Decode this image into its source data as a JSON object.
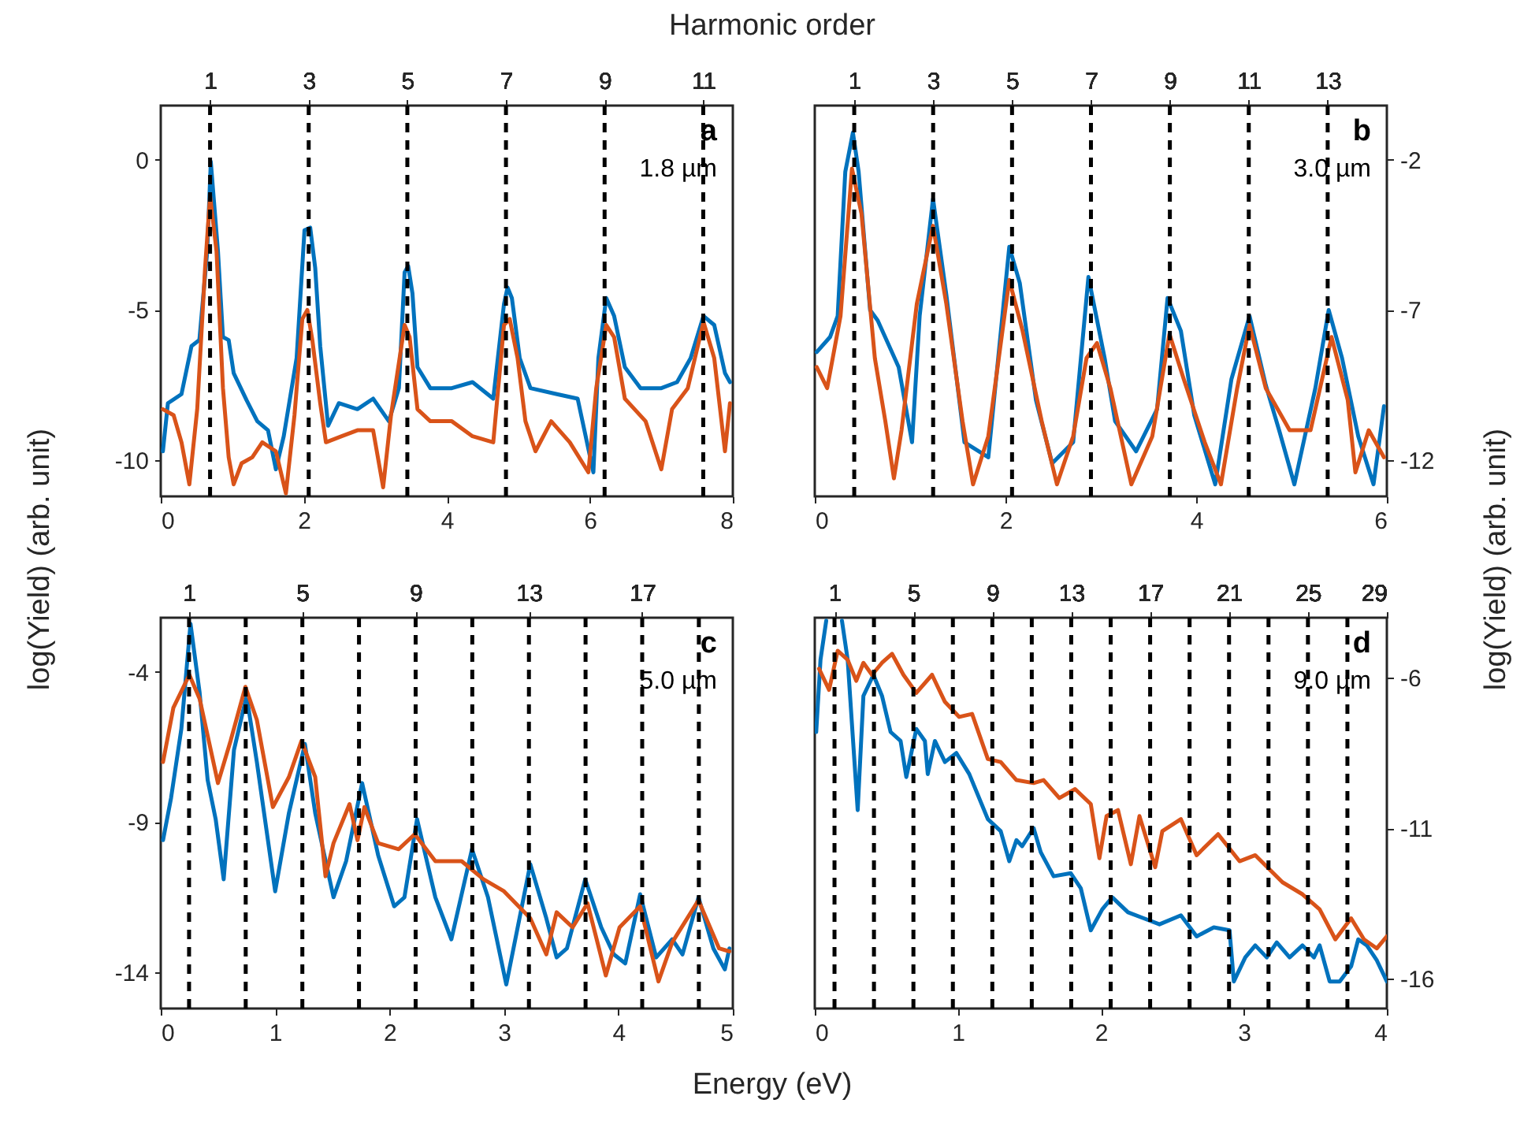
{
  "chart_data": [
    {
      "type": "line",
      "x2label": "Harmonic order",
      "ylabel": "log(Yield) (arb. unit)",
      "annotations": [
        "a",
        "1.8  µm"
      ],
      "xlim": [
        0,
        8
      ],
      "xticks": [
        0,
        2,
        4,
        6,
        8
      ],
      "ylim": [
        -11.2,
        1.8
      ],
      "yticks": [
        -10,
        -5,
        0
      ],
      "x2lim": [
        0,
        11.6
      ],
      "x2ticks": [
        1,
        3,
        5,
        7,
        9,
        11
      ],
      "ref_lines": [
        {
          "axis": "x2",
          "value": 1,
          "line_style": "dashed",
          "color": "#000000"
        },
        {
          "axis": "x2",
          "value": 3,
          "line_style": "dashed",
          "color": "#000000"
        },
        {
          "axis": "x2",
          "value": 5,
          "line_style": "dashed",
          "color": "#000000"
        },
        {
          "axis": "x2",
          "value": 7,
          "line_style": "dashed",
          "color": "#000000"
        },
        {
          "axis": "x2",
          "value": 9,
          "line_style": "dashed",
          "color": "#000000"
        },
        {
          "axis": "x2",
          "value": 11,
          "line_style": "dashed",
          "color": "#000000"
        }
      ],
      "series": [
        {
          "color": "#0072bd",
          "x": [
            0.03,
            0.1,
            0.29,
            0.43,
            0.54,
            0.65,
            0.7,
            0.8,
            0.87,
            0.95,
            1.02,
            1.2,
            1.35,
            1.5,
            1.61,
            1.72,
            1.9,
            2.01,
            2.09,
            2.16,
            2.23,
            2.34,
            2.49,
            2.75,
            2.97,
            3.19,
            3.33,
            3.41,
            3.46,
            3.52,
            3.59,
            3.77,
            4.07,
            4.36,
            4.65,
            4.8,
            4.85,
            4.91,
            5.02,
            5.17,
            5.54,
            5.83,
            6.05,
            6.12,
            6.23,
            6.34,
            6.49,
            6.71,
            7.0,
            7.22,
            7.41,
            7.59,
            7.74,
            7.89,
            7.96
          ],
          "values": [
            -9.7,
            -8.1,
            -7.8,
            -6.2,
            -6.0,
            -3.05,
            -0.07,
            -3.05,
            -5.9,
            -6.0,
            -7.1,
            -8.0,
            -8.7,
            -9.0,
            -10.3,
            -9.2,
            -6.6,
            -2.35,
            -2.26,
            -3.6,
            -6.2,
            -8.85,
            -8.1,
            -8.3,
            -7.95,
            -8.7,
            -7.6,
            -3.75,
            -3.54,
            -4.45,
            -6.9,
            -7.6,
            -7.6,
            -7.4,
            -7.95,
            -4.8,
            -4.25,
            -4.6,
            -6.6,
            -7.6,
            -7.8,
            -7.95,
            -10.4,
            -6.6,
            -4.6,
            -5.2,
            -6.9,
            -7.6,
            -7.6,
            -7.4,
            -6.6,
            -5.2,
            -5.5,
            -7.1,
            -7.4
          ]
        },
        {
          "color": "#d95319",
          "x": [
            0.03,
            0.18,
            0.29,
            0.4,
            0.51,
            0.62,
            0.69,
            0.78,
            0.87,
            0.95,
            1.02,
            1.13,
            1.28,
            1.42,
            1.61,
            1.75,
            1.87,
            1.98,
            2.05,
            2.12,
            2.23,
            2.31,
            2.53,
            2.75,
            2.97,
            3.11,
            3.22,
            3.41,
            3.48,
            3.59,
            3.77,
            4.07,
            4.36,
            4.65,
            4.8,
            4.88,
            4.99,
            5.1,
            5.24,
            5.46,
            5.72,
            5.98,
            6.09,
            6.23,
            6.34,
            6.49,
            6.78,
            7.0,
            7.15,
            7.37,
            7.59,
            7.74,
            7.89,
            7.96
          ],
          "values": [
            -8.3,
            -8.5,
            -9.4,
            -10.8,
            -8.3,
            -3.6,
            -1.2,
            -3.05,
            -7.6,
            -9.9,
            -10.8,
            -10.1,
            -9.9,
            -9.4,
            -9.7,
            -11.1,
            -8.5,
            -5.3,
            -5.0,
            -6.0,
            -8.1,
            -9.4,
            -9.2,
            -9.0,
            -9.0,
            -10.9,
            -8.5,
            -5.5,
            -5.9,
            -8.3,
            -8.7,
            -8.7,
            -9.2,
            -9.4,
            -5.5,
            -5.3,
            -6.6,
            -8.7,
            -9.7,
            -8.7,
            -9.4,
            -10.4,
            -7.6,
            -5.5,
            -5.9,
            -7.95,
            -8.7,
            -10.3,
            -8.3,
            -7.6,
            -5.4,
            -6.6,
            -9.7,
            -8.1
          ]
        }
      ]
    },
    {
      "type": "line",
      "y2label": "log(Yield) (arb. unit)",
      "annotations": [
        "b",
        "3.0  µm"
      ],
      "xlim": [
        0,
        6
      ],
      "xticks": [
        0,
        2,
        4,
        6
      ],
      "y2lim": [
        -13.2,
        -0.2
      ],
      "y2ticks": [
        -12,
        -7,
        -2
      ],
      "x2lim": [
        0,
        14.5
      ],
      "x2ticks": [
        1,
        3,
        5,
        7,
        9,
        11,
        13
      ],
      "ref_lines": [
        {
          "axis": "x2",
          "value": 1,
          "line_style": "dashed",
          "color": "#000000"
        },
        {
          "axis": "x2",
          "value": 3,
          "line_style": "dashed",
          "color": "#000000"
        },
        {
          "axis": "x2",
          "value": 5,
          "line_style": "dashed",
          "color": "#000000"
        },
        {
          "axis": "x2",
          "value": 7,
          "line_style": "dashed",
          "color": "#000000"
        },
        {
          "axis": "x2",
          "value": 9,
          "line_style": "dashed",
          "color": "#000000"
        },
        {
          "axis": "x2",
          "value": 11,
          "line_style": "dashed",
          "color": "#000000"
        },
        {
          "axis": "x2",
          "value": 13,
          "line_style": "dashed",
          "color": "#000000"
        }
      ],
      "series": [
        {
          "color": "#0072bd",
          "axis": "y2",
          "x": [
            0.02,
            0.16,
            0.24,
            0.32,
            0.4,
            0.46,
            0.58,
            0.66,
            0.88,
            1.02,
            1.1,
            1.24,
            1.38,
            1.57,
            1.82,
            2.04,
            2.15,
            2.32,
            2.49,
            2.71,
            2.87,
            3.04,
            3.15,
            3.37,
            3.59,
            3.7,
            3.84,
            3.98,
            4.2,
            4.37,
            4.56,
            4.73,
            4.87,
            5.03,
            5.25,
            5.39,
            5.53,
            5.7,
            5.86,
            5.97
          ],
          "values": [
            -8.4,
            -7.9,
            -7.2,
            -2.4,
            -1.1,
            -2.4,
            -7.0,
            -7.35,
            -8.9,
            -11.4,
            -7.2,
            -3.3,
            -6.5,
            -11.4,
            -11.9,
            -4.9,
            -6.1,
            -10.0,
            -12.1,
            -11.4,
            -5.9,
            -8.6,
            -10.7,
            -11.7,
            -10.3,
            -6.6,
            -7.7,
            -10.5,
            -12.8,
            -9.3,
            -7.2,
            -9.5,
            -11.0,
            -12.8,
            -9.6,
            -7.0,
            -8.6,
            -11.2,
            -12.8,
            -10.2
          ]
        },
        {
          "color": "#d95319",
          "axis": "y2",
          "x": [
            0.02,
            0.13,
            0.27,
            0.39,
            0.49,
            0.63,
            0.74,
            0.83,
            0.91,
            1.07,
            1.24,
            1.38,
            1.55,
            1.66,
            1.82,
            2.04,
            2.18,
            2.38,
            2.54,
            2.71,
            2.85,
            2.96,
            3.1,
            3.32,
            3.54,
            3.72,
            3.87,
            4.09,
            4.26,
            4.43,
            4.56,
            4.73,
            4.98,
            5.2,
            5.42,
            5.59,
            5.67,
            5.81,
            5.97
          ],
          "values": [
            -8.9,
            -9.6,
            -7.2,
            -2.3,
            -3.8,
            -8.6,
            -10.7,
            -12.6,
            -11.0,
            -6.8,
            -4.2,
            -6.8,
            -10.7,
            -12.8,
            -11.2,
            -6.0,
            -7.7,
            -10.7,
            -12.8,
            -11.2,
            -8.6,
            -8.1,
            -9.6,
            -12.8,
            -11.2,
            -7.8,
            -9.3,
            -11.4,
            -12.8,
            -9.6,
            -7.5,
            -9.6,
            -11.0,
            -11.0,
            -7.9,
            -10.0,
            -12.4,
            -11.0,
            -11.9
          ]
        }
      ]
    },
    {
      "type": "line",
      "xlabel": "Energy (eV)",
      "annotations": [
        "c",
        "5.0  µm"
      ],
      "xlim": [
        0,
        5
      ],
      "xticks": [
        0,
        1,
        2,
        3,
        4,
        5
      ],
      "ylim": [
        -15.2,
        -2.2
      ],
      "yticks": [
        -14,
        -9,
        -4
      ],
      "x2lim": [
        0,
        20.2
      ],
      "x2ticks": [
        1,
        5,
        9,
        13,
        17
      ],
      "ref_lines": [
        {
          "axis": "x2",
          "value": 1,
          "line_style": "dashed",
          "color": "#000000"
        },
        {
          "axis": "x2",
          "value": 3,
          "line_style": "dashed",
          "color": "#000000"
        },
        {
          "axis": "x2",
          "value": 5,
          "line_style": "dashed",
          "color": "#000000"
        },
        {
          "axis": "x2",
          "value": 7,
          "line_style": "dashed",
          "color": "#000000"
        },
        {
          "axis": "x2",
          "value": 9,
          "line_style": "dashed",
          "color": "#000000"
        },
        {
          "axis": "x2",
          "value": 11,
          "line_style": "dashed",
          "color": "#000000"
        },
        {
          "axis": "x2",
          "value": 13,
          "line_style": "dashed",
          "color": "#000000"
        },
        {
          "axis": "x2",
          "value": 15,
          "line_style": "dashed",
          "color": "#000000"
        },
        {
          "axis": "x2",
          "value": 17,
          "line_style": "dashed",
          "color": "#000000"
        },
        {
          "axis": "x2",
          "value": 19,
          "line_style": "dashed",
          "color": "#000000"
        }
      ],
      "series": [
        {
          "color": "#0072bd",
          "x": [
            0.02,
            0.09,
            0.18,
            0.26,
            0.34,
            0.41,
            0.48,
            0.55,
            0.64,
            0.75,
            0.84,
            1.0,
            1.12,
            1.26,
            1.35,
            1.51,
            1.62,
            1.76,
            1.9,
            2.04,
            2.13,
            2.24,
            2.4,
            2.54,
            2.72,
            2.86,
            3.02,
            3.23,
            3.37,
            3.46,
            3.55,
            3.71,
            3.85,
            3.96,
            4.06,
            4.19,
            4.33,
            4.47,
            4.56,
            4.7,
            4.83,
            4.93,
            4.97
          ],
          "values": [
            -9.6,
            -8.2,
            -5.9,
            -2.4,
            -4.7,
            -7.6,
            -8.9,
            -10.9,
            -6.6,
            -4.8,
            -7.0,
            -11.3,
            -8.7,
            -6.4,
            -8.7,
            -11.5,
            -10.3,
            -7.7,
            -10.1,
            -11.8,
            -11.5,
            -8.9,
            -11.5,
            -12.9,
            -9.9,
            -11.5,
            -14.4,
            -10.4,
            -12.2,
            -13.5,
            -13.2,
            -10.9,
            -12.5,
            -13.4,
            -13.7,
            -11.4,
            -13.5,
            -12.9,
            -13.4,
            -11.5,
            -13.2,
            -13.9,
            -13.2
          ]
        },
        {
          "color": "#d95319",
          "x": [
            0.02,
            0.11,
            0.25,
            0.34,
            0.5,
            0.61,
            0.74,
            0.84,
            0.98,
            1.12,
            1.23,
            1.35,
            1.44,
            1.51,
            1.65,
            1.72,
            1.78,
            1.9,
            2.08,
            2.22,
            2.4,
            2.63,
            2.82,
            3.0,
            3.23,
            3.37,
            3.46,
            3.6,
            3.73,
            3.89,
            4.01,
            4.19,
            4.35,
            4.47,
            4.7,
            4.88,
            4.97
          ],
          "values": [
            -7.0,
            -5.2,
            -4.1,
            -4.9,
            -7.7,
            -6.3,
            -4.5,
            -5.6,
            -8.5,
            -7.5,
            -6.3,
            -7.5,
            -10.8,
            -9.7,
            -8.4,
            -9.6,
            -8.5,
            -9.7,
            -9.9,
            -9.4,
            -10.3,
            -10.3,
            -10.9,
            -11.3,
            -12.2,
            -13.4,
            -12.0,
            -12.5,
            -11.7,
            -14.1,
            -12.5,
            -11.8,
            -14.3,
            -13.0,
            -11.6,
            -13.2,
            -13.3
          ]
        }
      ]
    },
    {
      "type": "line",
      "annotations": [
        "d",
        "9.0  µm"
      ],
      "xlim": [
        0,
        4
      ],
      "xticks": [
        0,
        1,
        2,
        3,
        4
      ],
      "y2lim": [
        -17.0,
        -4.0
      ],
      "y2ticks": [
        -16,
        -11,
        -6
      ],
      "x2lim": [
        0,
        29
      ],
      "x2ticks": [
        1,
        5,
        9,
        13,
        17,
        21,
        25,
        29
      ],
      "ref_lines": [
        {
          "axis": "x2",
          "value": 1,
          "line_style": "dashed",
          "color": "#000000"
        },
        {
          "axis": "x2",
          "value": 3,
          "line_style": "dashed",
          "color": "#000000"
        },
        {
          "axis": "x2",
          "value": 5,
          "line_style": "dashed",
          "color": "#000000"
        },
        {
          "axis": "x2",
          "value": 7,
          "line_style": "dashed",
          "color": "#000000"
        },
        {
          "axis": "x2",
          "value": 9,
          "line_style": "dashed",
          "color": "#000000"
        },
        {
          "axis": "x2",
          "value": 11,
          "line_style": "dashed",
          "color": "#000000"
        },
        {
          "axis": "x2",
          "value": 13,
          "line_style": "dashed",
          "color": "#000000"
        },
        {
          "axis": "x2",
          "value": 15,
          "line_style": "dashed",
          "color": "#000000"
        },
        {
          "axis": "x2",
          "value": 17,
          "line_style": "dashed",
          "color": "#000000"
        },
        {
          "axis": "x2",
          "value": 19,
          "line_style": "dashed",
          "color": "#000000"
        },
        {
          "axis": "x2",
          "value": 21,
          "line_style": "dashed",
          "color": "#000000"
        },
        {
          "axis": "x2",
          "value": 23,
          "line_style": "dashed",
          "color": "#000000"
        },
        {
          "axis": "x2",
          "value": 25,
          "line_style": "dashed",
          "color": "#000000"
        },
        {
          "axis": "x2",
          "value": 27,
          "line_style": "dashed",
          "color": "#000000"
        }
      ],
      "series": [
        {
          "color": "#0072bd",
          "axis": "y2",
          "x": [
            0.01,
            0.04,
            0.08,
            0.12,
            0.19,
            0.23,
            0.3,
            0.34,
            0.41,
            0.47,
            0.53,
            0.6,
            0.64,
            0.71,
            0.77,
            0.79,
            0.84,
            0.91,
            0.99,
            1.08,
            1.21,
            1.3,
            1.36,
            1.41,
            1.45,
            1.53,
            1.58,
            1.67,
            1.79,
            1.86,
            1.93,
            2.01,
            2.08,
            2.19,
            2.3,
            2.41,
            2.56,
            2.67,
            2.79,
            2.9,
            2.93,
            3.01,
            3.08,
            3.16,
            3.23,
            3.32,
            3.41,
            3.49,
            3.53,
            3.6,
            3.67,
            3.75,
            3.8,
            3.86,
            3.93,
            4.0
          ],
          "values": [
            -7.8,
            -5.4,
            -4.1,
            null,
            -4.1,
            -5.4,
            -10.4,
            -6.6,
            -5.9,
            -6.6,
            -7.8,
            -8.1,
            -9.3,
            -7.7,
            -8.1,
            -9.2,
            -8.1,
            -8.8,
            -8.5,
            -9.2,
            -10.7,
            -11.1,
            -12.1,
            -11.4,
            -11.6,
            -11.0,
            -11.8,
            -12.6,
            -12.5,
            -13.0,
            -14.4,
            -13.7,
            -13.3,
            -13.8,
            -14.0,
            -14.2,
            -13.9,
            -14.6,
            -14.3,
            -14.4,
            -16.1,
            -15.3,
            -14.9,
            -15.3,
            -14.8,
            -15.3,
            -14.9,
            -15.3,
            -14.9,
            -16.1,
            -16.1,
            -15.6,
            -14.7,
            -14.9,
            -15.4,
            -16.1
          ]
        },
        {
          "color": "#d95319",
          "axis": "y2",
          "x": [
            0.03,
            0.1,
            0.16,
            0.23,
            0.29,
            0.34,
            0.4,
            0.47,
            0.54,
            0.62,
            0.71,
            0.82,
            0.91,
            1.01,
            1.1,
            1.21,
            1.3,
            1.41,
            1.53,
            1.6,
            1.71,
            1.82,
            1.93,
            1.99,
            2.04,
            2.12,
            2.21,
            2.27,
            2.38,
            2.43,
            2.56,
            2.67,
            2.82,
            2.97,
            3.08,
            3.27,
            3.41,
            3.53,
            3.64,
            3.75,
            3.84,
            3.93,
            4.0
          ],
          "values": [
            -5.7,
            -6.4,
            -5.1,
            -5.4,
            -6.1,
            -5.5,
            -5.9,
            -5.5,
            -5.2,
            -5.9,
            -6.5,
            -5.9,
            -6.8,
            -7.3,
            -7.2,
            -8.7,
            -8.8,
            -9.4,
            -9.5,
            -9.4,
            -10.0,
            -9.7,
            -10.2,
            -12.0,
            -10.6,
            -10.4,
            -12.2,
            -10.6,
            -12.3,
            -11.1,
            -10.7,
            -11.9,
            -11.2,
            -12.1,
            -11.9,
            -12.8,
            -13.2,
            -13.7,
            -14.7,
            -14.0,
            -14.7,
            -15.0,
            -14.6
          ]
        }
      ]
    }
  ]
}
